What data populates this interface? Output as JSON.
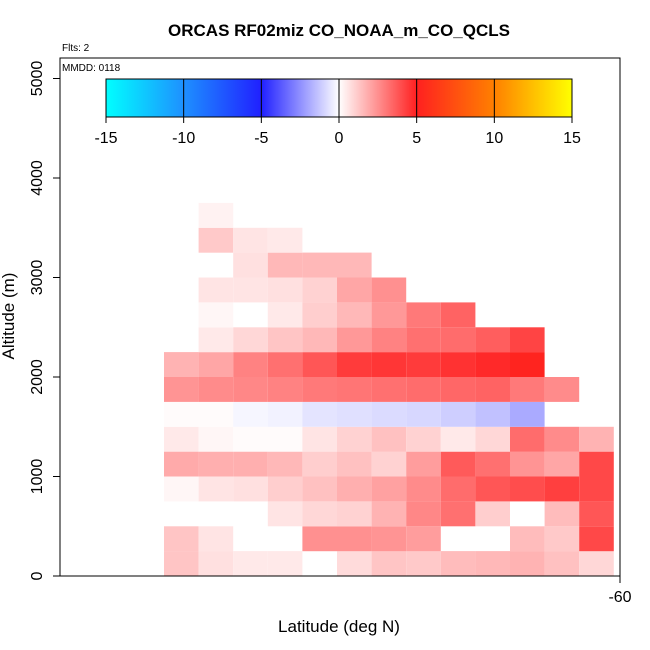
{
  "chart_data": {
    "type": "heatmap",
    "title": "ORCAS RF02miz CO_NOAA_m_CO_QCLS",
    "flts_label": "Flts: 2",
    "mmdd_label": "MMDD: 0118",
    "xlabel": "Latitude (deg N)",
    "ylabel": "Altitude (m)",
    "x_tick_labels": [
      "-60"
    ],
    "y_tick_labels": [
      "0",
      "1000",
      "2000",
      "3000",
      "4000",
      "5000"
    ],
    "y_ticks": [
      0,
      1000,
      2000,
      3000,
      4000,
      5000
    ],
    "ylim": [
      -50,
      5200
    ],
    "colorbar": {
      "min": -15,
      "max": 15,
      "tick_labels": [
        "-15",
        "-10",
        "-5",
        "0",
        "5",
        "10",
        "15"
      ],
      "tick_values": [
        -15,
        -10,
        -5,
        0,
        5,
        10,
        15
      ],
      "stops": [
        {
          "v": -15,
          "c": "#00ffff"
        },
        {
          "v": -10,
          "c": "#1e90ff"
        },
        {
          "v": -5,
          "c": "#2020ff"
        },
        {
          "v": 0,
          "c": "#ffffff"
        },
        {
          "v": 5,
          "c": "#ff2020"
        },
        {
          "v": 10,
          "c": "#ff8000"
        },
        {
          "v": 15,
          "c": "#ffff00"
        }
      ]
    },
    "grid": {
      "n_cols": 13,
      "bin_height_m": 250,
      "cells": [
        {
          "row": 0,
          "values": [
            1.3,
            0.7,
            0.5,
            0.5,
            null,
            0.8,
            1.3,
            1.2,
            1.5,
            1.6,
            1.7,
            1.4,
            0.9
          ]
        },
        {
          "row": 1,
          "values": [
            1.3,
            0.6,
            null,
            null,
            2.5,
            2.5,
            2.4,
            2.2,
            null,
            null,
            1.5,
            1.2,
            4.1
          ]
        },
        {
          "row": 2,
          "values": [
            null,
            null,
            null,
            0.6,
            0.9,
            1.0,
            1.7,
            2.7,
            3.2,
            1.1,
            null,
            1.5,
            3.8
          ]
        },
        {
          "row": 3,
          "values": [
            0.2,
            0.6,
            0.7,
            1.1,
            1.4,
            1.8,
            2.1,
            2.6,
            3.3,
            3.8,
            4.0,
            4.3,
            4.1
          ]
        },
        {
          "row": 4,
          "values": [
            1.9,
            1.8,
            1.8,
            1.6,
            1.1,
            1.4,
            1.0,
            2.2,
            3.7,
            3.2,
            2.4,
            2.0,
            4.1
          ]
        },
        {
          "row": 5,
          "values": [
            0.5,
            0.2,
            0.1,
            0.1,
            0.6,
            1.0,
            1.4,
            1.0,
            0.5,
            0.9,
            3.3,
            2.6,
            1.7
          ]
        },
        {
          "row": 6,
          "values": [
            0.1,
            0.1,
            -0.2,
            -0.3,
            -0.6,
            -0.7,
            -0.8,
            -0.9,
            -1.1,
            -1.4,
            -1.9,
            null,
            null
          ]
        },
        {
          "row": 7,
          "values": [
            2.4,
            2.6,
            2.7,
            2.8,
            3.0,
            3.1,
            3.2,
            3.3,
            3.4,
            3.5,
            3.0,
            2.6,
            null
          ]
        },
        {
          "row": 8,
          "values": [
            1.7,
            2.0,
            2.8,
            3.2,
            3.8,
            4.4,
            4.5,
            4.4,
            4.6,
            4.8,
            5.2,
            null,
            null
          ]
        },
        {
          "row": 9,
          "values": [
            null,
            0.5,
            0.9,
            1.3,
            1.6,
            2.3,
            2.8,
            3.2,
            3.3,
            3.6,
            4.2,
            null,
            null
          ]
        },
        {
          "row": 10,
          "values": [
            null,
            0.2,
            null,
            0.5,
            1.1,
            1.6,
            2.3,
            3.0,
            3.5,
            null,
            null,
            null,
            null
          ]
        },
        {
          "row": 11,
          "values": [
            null,
            0.6,
            0.6,
            0.7,
            1.0,
            2.0,
            2.5,
            null,
            null,
            null,
            null,
            null,
            null
          ]
        },
        {
          "row": 12,
          "values": [
            null,
            null,
            0.7,
            1.6,
            1.6,
            1.6,
            null,
            null,
            null,
            null,
            null,
            null,
            null
          ]
        },
        {
          "row": 13,
          "values": [
            null,
            1.2,
            0.6,
            0.5,
            null,
            null,
            null,
            null,
            null,
            null,
            null,
            null,
            null
          ]
        },
        {
          "row": 14,
          "values": [
            null,
            0.3,
            null,
            null,
            null,
            null,
            null,
            null,
            null,
            null,
            null,
            null,
            null
          ]
        }
      ]
    }
  }
}
